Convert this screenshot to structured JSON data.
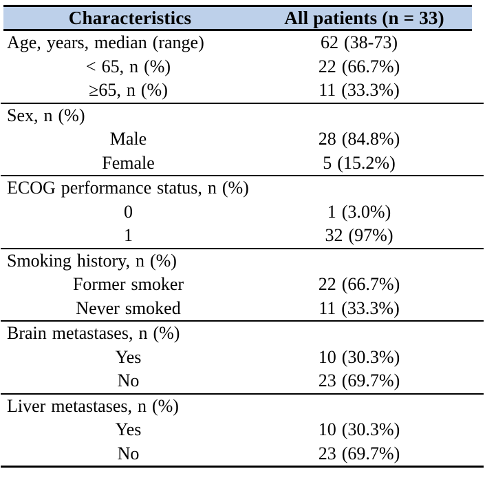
{
  "table": {
    "header_bg": "#bdd0ea",
    "rule_color": "#000000",
    "header": {
      "col1": "Characteristics",
      "col2": "All patients (n = 33)"
    },
    "sections": [
      {
        "label": "Age, years, median (range)",
        "value": "62 (38-73)",
        "rows": [
          {
            "label": "< 65, n (%)",
            "value": "22 (66.7%)"
          },
          {
            "label": "≥65, n (%)",
            "value": "11 (33.3%)"
          }
        ]
      },
      {
        "label": "Sex, n (%)",
        "value": "",
        "rows": [
          {
            "label": "Male",
            "value": "28 (84.8%)"
          },
          {
            "label": "Female",
            "value": "5 (15.2%)"
          }
        ]
      },
      {
        "label": "ECOG performance status, n (%)",
        "value": "",
        "rows": [
          {
            "label": "0",
            "value": "1 (3.0%)"
          },
          {
            "label": "1",
            "value": "32 (97%)"
          }
        ]
      },
      {
        "label": "Smoking history, n (%)",
        "value": "",
        "rows": [
          {
            "label": "Former smoker",
            "value": "22 (66.7%)"
          },
          {
            "label": "Never smoked",
            "value": "11 (33.3%)"
          }
        ]
      },
      {
        "label": "Brain metastases, n (%)",
        "value": "",
        "rows": [
          {
            "label": "Yes",
            "value": "10 (30.3%)"
          },
          {
            "label": "No",
            "value": "23 (69.7%)"
          }
        ]
      },
      {
        "label": "Liver metastases, n (%)",
        "value": "",
        "rows": [
          {
            "label": "Yes",
            "value": "10 (30.3%)"
          },
          {
            "label": "No",
            "value": "23 (69.7%)"
          }
        ]
      }
    ]
  }
}
